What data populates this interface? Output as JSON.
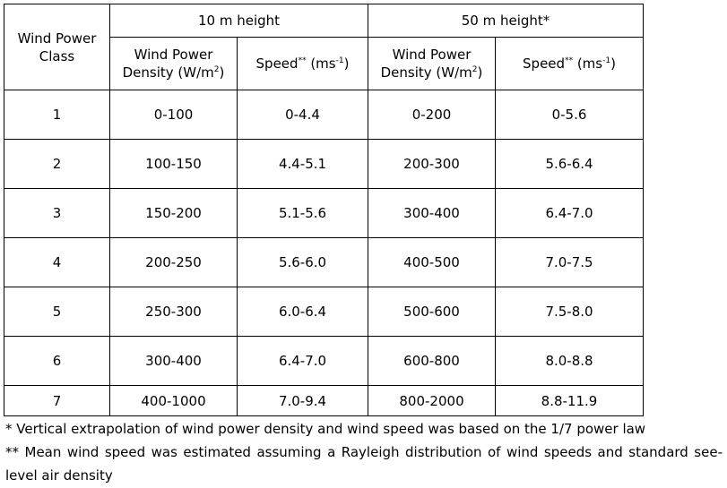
{
  "table": {
    "corner_header": "Wind Power Class",
    "group_headers": [
      "10 m height",
      "50 m height*"
    ],
    "sub_headers": [
      {
        "text": "Wind Power Density (W/m",
        "sup": "2",
        "tail": ")"
      },
      {
        "text": "Speed",
        "sup": "**",
        "tail": " (ms",
        "sup2": "-1",
        "tail2": ")"
      },
      {
        "text": "Wind Power Density (W/m",
        "sup": "2",
        "tail": ")"
      },
      {
        "text": "Speed",
        "sup": "**",
        "tail": " (ms",
        "sup2": "-1",
        "tail2": ")"
      }
    ],
    "rows": [
      [
        "1",
        "0-100",
        "0-4.4",
        "0-200",
        "0-5.6"
      ],
      [
        "2",
        "100-150",
        "4.4-5.1",
        "200-300",
        "5.6-6.4"
      ],
      [
        "3",
        "150-200",
        "5.1-5.6",
        "300-400",
        "6.4-7.0"
      ],
      [
        "4",
        "200-250",
        "5.6-6.0",
        "400-500",
        "7.0-7.5"
      ],
      [
        "5",
        "250-300",
        "6.0-6.4",
        "500-600",
        "7.5-8.0"
      ],
      [
        "6",
        "300-400",
        "6.4-7.0",
        "600-800",
        "8.0-8.8"
      ],
      [
        "7",
        "400-1000",
        "7.0-9.4",
        "800-2000",
        "8.8-11.9"
      ]
    ]
  },
  "footnotes": [
    "* Vertical extrapolation of wind power density and wind speed was based on the 1/7 power law",
    "** Mean wind speed was estimated assuming a Rayleigh distribution of wind speeds and standard see-level air density"
  ]
}
